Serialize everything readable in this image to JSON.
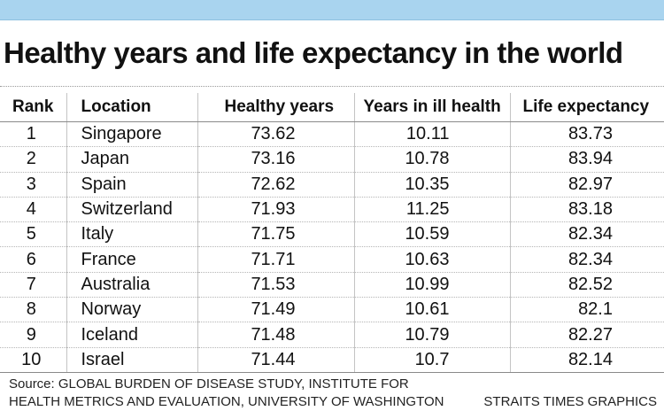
{
  "header_bar": {
    "color": "#a9d4ef"
  },
  "title": "Healthy years and life expectancy in the world",
  "chart_data": {
    "type": "table",
    "title": "Healthy years and life expectancy in the world",
    "columns": [
      "Rank",
      "Location",
      "Healthy years",
      "Years in ill health",
      "Life expectancy"
    ],
    "rows": [
      [
        "1",
        "Singapore",
        "73.62",
        "10.11",
        "83.73"
      ],
      [
        "2",
        "Japan",
        "73.16",
        "10.78",
        "83.94"
      ],
      [
        "3",
        "Spain",
        "72.62",
        "10.35",
        "82.97"
      ],
      [
        "4",
        "Switzerland",
        "71.93",
        "11.25",
        "83.18"
      ],
      [
        "5",
        "Italy",
        "71.75",
        "10.59",
        "82.34"
      ],
      [
        "6",
        "France",
        "71.71",
        "10.63",
        "82.34"
      ],
      [
        "7",
        "Australia",
        "71.53",
        "10.99",
        "82.52"
      ],
      [
        "8",
        "Norway",
        "71.49",
        "10.61",
        "82.1"
      ],
      [
        "9",
        "Iceland",
        "71.48",
        "10.79",
        "82.27"
      ],
      [
        "10",
        "Israel",
        "71.44",
        "10.7",
        "82.14"
      ]
    ]
  },
  "footer": {
    "source_line1": "Source: GLOBAL BURDEN OF DISEASE STUDY, INSTITUTE FOR",
    "source_line2": "HEALTH METRICS AND EVALUATION, UNIVERSITY OF WASHINGTON",
    "credit": "STRAITS TIMES GRAPHICS"
  }
}
